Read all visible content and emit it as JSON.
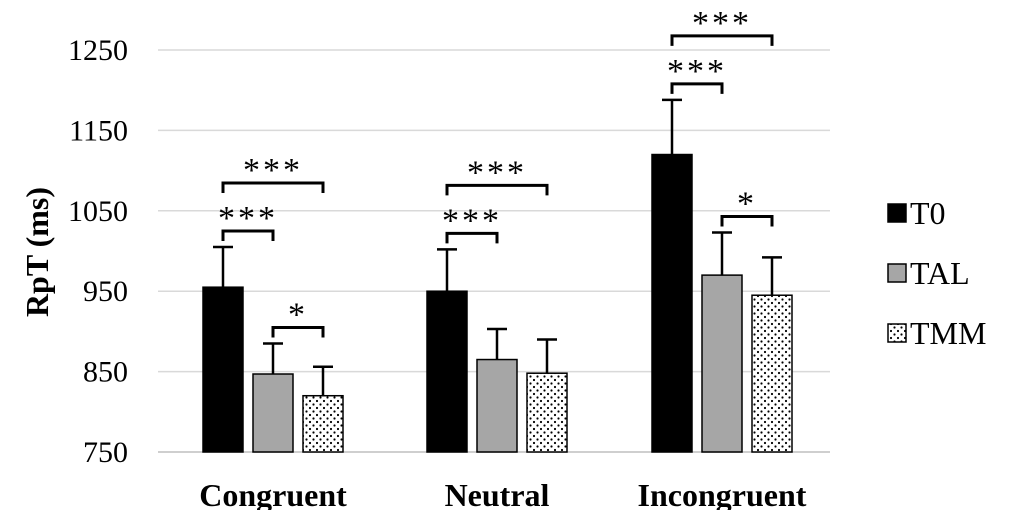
{
  "chart_data": {
    "type": "bar",
    "title": "",
    "xlabel": "",
    "ylabel": "RpT (ms)",
    "ylim": [
      750,
      1250
    ],
    "yticks": [
      750,
      850,
      950,
      1050,
      1150,
      1250
    ],
    "grid": true,
    "legend_position": "right",
    "categories": [
      "Congruent",
      "Neutral",
      "Incongruent"
    ],
    "series": [
      {
        "name": "T0",
        "values": [
          955,
          950,
          1120
        ],
        "errors": [
          50,
          52,
          68
        ],
        "fill": "solid-black"
      },
      {
        "name": "TAL",
        "values": [
          847,
          865,
          970
        ],
        "errors": [
          38,
          38,
          53
        ],
        "fill": "solid-gray"
      },
      {
        "name": "TMM",
        "values": [
          820,
          848,
          945
        ],
        "errors": [
          36,
          42,
          47
        ],
        "fill": "dotted"
      }
    ],
    "significance": [
      {
        "category": 0,
        "from": 0,
        "to": 1,
        "label": "***"
      },
      {
        "category": 0,
        "from": 0,
        "to": 2,
        "label": "***"
      },
      {
        "category": 0,
        "from": 1,
        "to": 2,
        "label": "*"
      },
      {
        "category": 1,
        "from": 0,
        "to": 1,
        "label": "***"
      },
      {
        "category": 1,
        "from": 0,
        "to": 2,
        "label": "***"
      },
      {
        "category": 2,
        "from": 0,
        "to": 1,
        "label": "***"
      },
      {
        "category": 2,
        "from": 0,
        "to": 2,
        "label": "***"
      },
      {
        "category": 2,
        "from": 1,
        "to": 2,
        "label": "*"
      }
    ]
  },
  "colors": {
    "T0": "#000000",
    "TAL": "#a6a6a6",
    "TMM": "#ffffff",
    "grid": "#d9d9d9"
  }
}
